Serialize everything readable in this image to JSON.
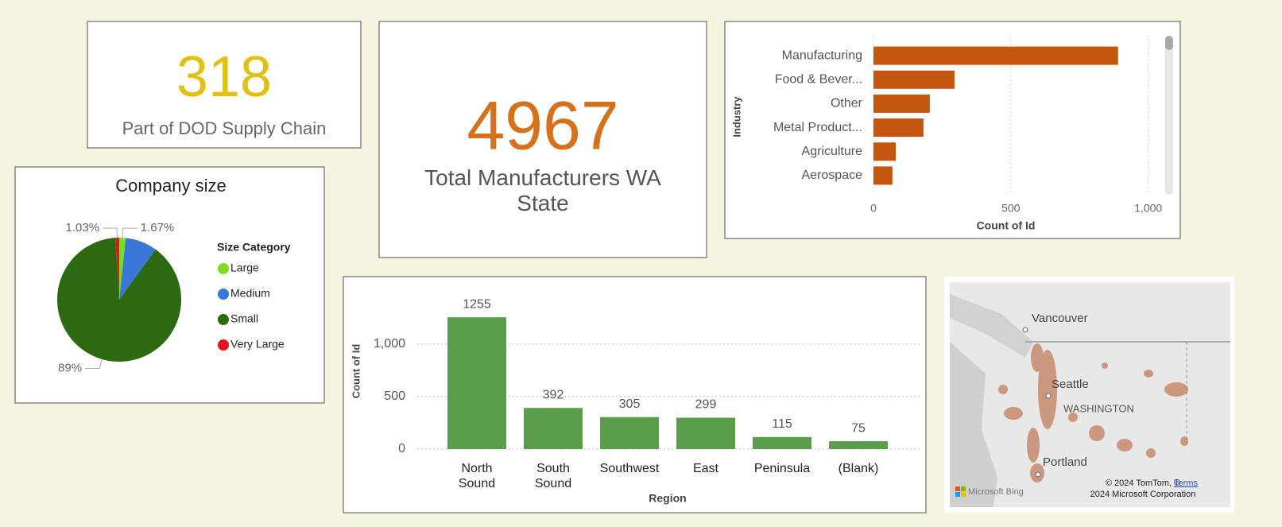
{
  "cards": [
    {
      "value": 318,
      "label": "Part of DOD Supply Chain"
    },
    {
      "value": 4967,
      "label": "Total Manufacturers WA State"
    }
  ],
  "map": {
    "places": [
      "Vancouver",
      "Seattle",
      "WASHINGTON",
      "Portland"
    ],
    "brand": "Microsoft Bing",
    "copyright": "© 2024 TomTom, © 2024 Microsoft Corporation",
    "terms": "Terms"
  },
  "chart_data": [
    {
      "type": "bar",
      "horizontal": true,
      "y_label": "Industry",
      "x_label": "Count of Id",
      "categories": [
        "Manufacturing",
        "Food & Bever...",
        "Other",
        "Metal Product...",
        "Agriculture",
        "Aerospace"
      ],
      "values": [
        890,
        295,
        205,
        182,
        81,
        69
      ],
      "color": "#c4570f",
      "xlim": [
        0,
        1050
      ],
      "xticks": [
        0,
        500,
        {
          "value": 1000,
          "label": "1,000"
        }
      ],
      "grid": true
    },
    {
      "type": "pie",
      "title": "Company size",
      "legend_title": "Size Category",
      "categories": [
        "Large",
        "Medium",
        "Small",
        "Very Large"
      ],
      "values": [
        1.67,
        8.3,
        89,
        1.03
      ],
      "value_labels": [
        "1.67%",
        null,
        "89%",
        "1.03%"
      ],
      "colors": [
        "#7ddc1f",
        "#3a78d8",
        "#2b6a12",
        "#e3151a"
      ]
    },
    {
      "type": "bar",
      "horizontal": false,
      "x_label": "Region",
      "y_label": "Count of Id",
      "categories": [
        "North Sound",
        "South Sound",
        "Southwest",
        "East",
        "Peninsula",
        "(Blank)"
      ],
      "values": [
        1255,
        392,
        305,
        299,
        115,
        75
      ],
      "color": "#5a9e4b",
      "ylim": [
        0,
        1400
      ],
      "yticks": [
        0,
        500,
        {
          "value": 1000,
          "label": "1,000"
        }
      ],
      "grid": true
    }
  ]
}
